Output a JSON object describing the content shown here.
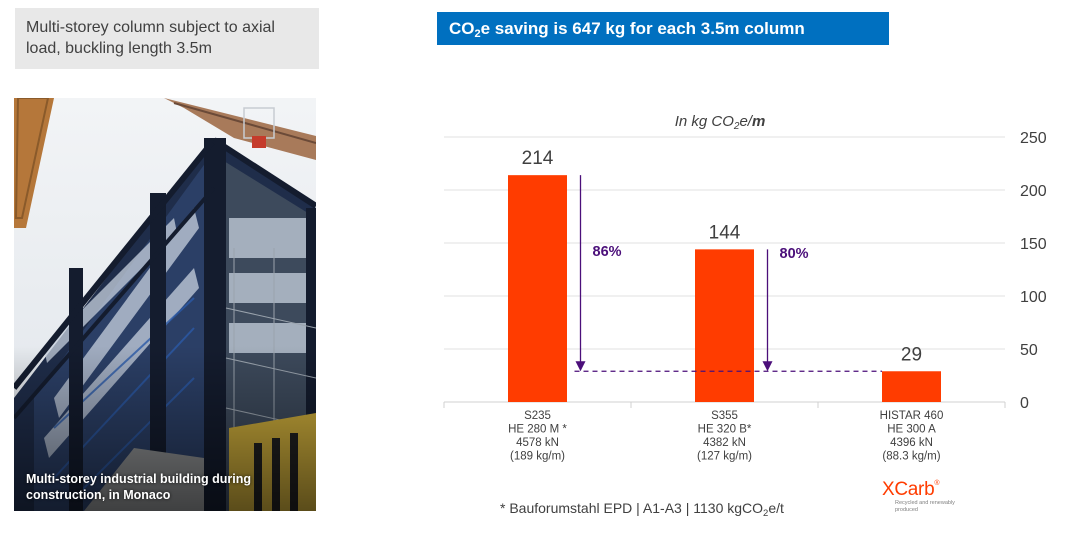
{
  "context_box": {
    "text": "Multi-storey column subject to axial load, buckling length 3.5m"
  },
  "photo": {
    "subject": "steel-frame-building-under-construction",
    "caption": "Multi-storey industrial building during construction, in Monaco"
  },
  "headline": {
    "prefix": "CO",
    "sub": "2",
    "suffix": "e saving is 647 kg for each 3.5m column",
    "background": "#0070c0"
  },
  "chart_unit": {
    "prefix": "In kg CO",
    "sub": "2",
    "mid": "e/",
    "bold": "m"
  },
  "chart_data": {
    "type": "bar",
    "title": "In kg CO2e/m",
    "categories": [
      [
        "S235",
        "HE 280 M *",
        "4578 kN",
        "(189 kg/m)"
      ],
      [
        "S355",
        "HE 320 B*",
        "4382 kN",
        "(127 kg/m)"
      ],
      [
        "HISTAR 460",
        "HE 300 A",
        "4396 kN",
        "(88.3 kg/m)"
      ]
    ],
    "values": [
      214,
      144,
      29
    ],
    "value_labels": [
      "214",
      "144",
      "29"
    ],
    "bar_color": "#ff3c00",
    "ylim": [
      0,
      250
    ],
    "yticks": [
      0,
      50,
      100,
      150,
      200,
      250
    ],
    "y_axis_position": "right",
    "grid": true,
    "annotations": [
      {
        "from_value": 214,
        "to_value": 29,
        "label": "86%",
        "color": "#4b0f7a"
      },
      {
        "from_value": 144,
        "to_value": 29,
        "label": "80%",
        "color": "#4b0f7a"
      }
    ],
    "reference_line": {
      "value": 29,
      "style": "dashed",
      "color": "#4b0f7a"
    }
  },
  "footnote": {
    "prefix": "* Bauforumstahl EPD | A1-A3 | 1130 kgCO",
    "sub": "2",
    "suffix": "e/t"
  },
  "logo": {
    "name": "XCarb",
    "mark": "®",
    "tagline": "Recycled and renewably produced",
    "color": "#ff3c00"
  }
}
